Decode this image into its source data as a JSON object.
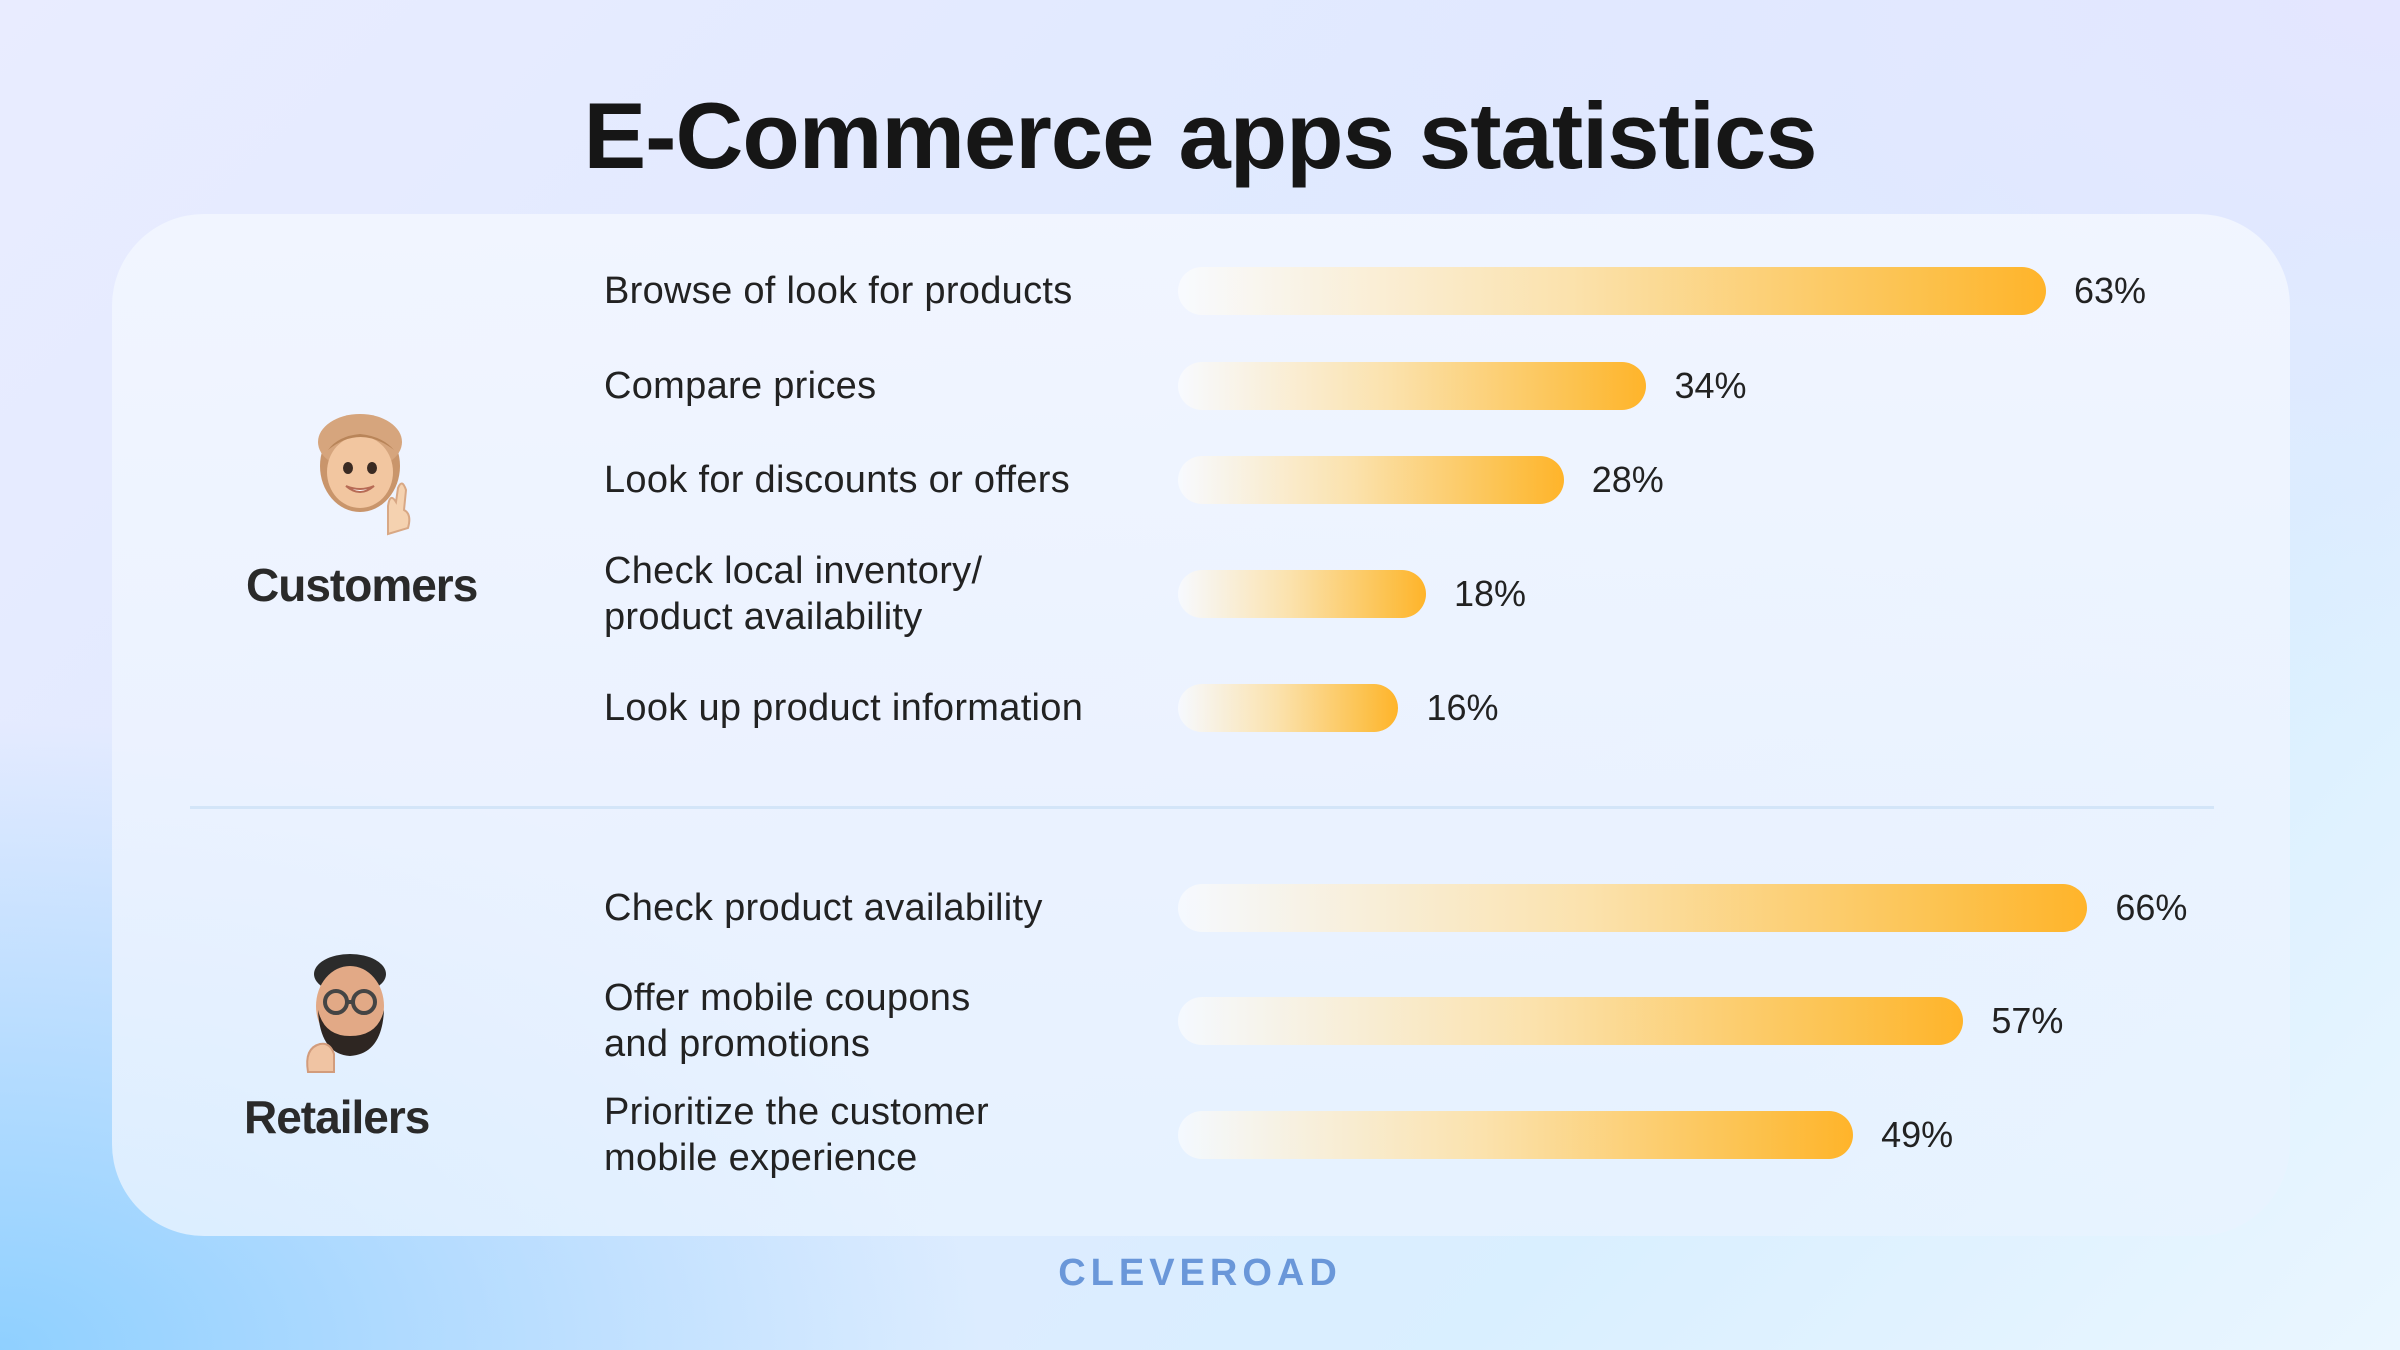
{
  "title": "E-Commerce apps statistics",
  "brand": "CLEVEROAD",
  "groups": [
    {
      "name": "Customers"
    },
    {
      "name": "Retailers"
    }
  ],
  "chart_data": {
    "type": "bar",
    "orientation": "horizontal",
    "title": "E-Commerce apps statistics",
    "groups": [
      {
        "name": "Customers",
        "categories": [
          "Browse of look for products",
          "Compare prices",
          "Look for discounts or offers",
          "Check local inventory/\nproduct availability",
          "Look up product information"
        ],
        "values": [
          63,
          34,
          28,
          18,
          16
        ],
        "labels": [
          "63%",
          "34%",
          "28%",
          "18%",
          "16%"
        ]
      },
      {
        "name": "Retailers",
        "categories": [
          "Check product availability",
          "Offer mobile coupons\nand promotions",
          "Prioritize the customer\nmobile experience"
        ],
        "values": [
          66,
          57,
          49
        ],
        "labels": [
          "66%",
          "57%",
          "49%"
        ]
      }
    ],
    "colors": {
      "bar_start": "#fbf3e4",
      "bar_end": "#ffb42a"
    }
  }
}
